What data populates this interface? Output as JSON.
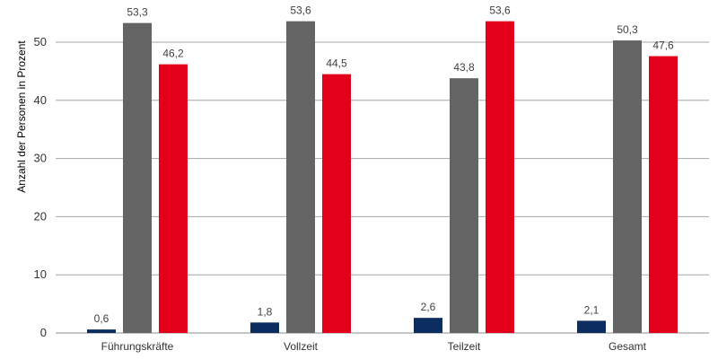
{
  "chart_data": {
    "type": "bar",
    "ylabel": "Anzahl der Personen in Prozent",
    "xlabel": "",
    "ylim": [
      0,
      55
    ],
    "yticks": [
      0,
      10,
      20,
      30,
      40,
      50
    ],
    "grid": true,
    "categories": [
      "Führungskräfte",
      "Vollzeit",
      "Teilzeit",
      "Gesamt"
    ],
    "series": [
      {
        "color": "#0b2d60",
        "values": [
          0.6,
          1.8,
          2.6,
          2.1
        ],
        "labels": [
          "0,6",
          "1,8",
          "2,6",
          "2,1"
        ]
      },
      {
        "color": "#646464",
        "values": [
          53.3,
          53.6,
          43.8,
          50.3
        ],
        "labels": [
          "53,3",
          "53,6",
          "43,8",
          "50,3"
        ]
      },
      {
        "color": "#e2001a",
        "values": [
          46.2,
          44.5,
          53.6,
          47.6
        ],
        "labels": [
          "46,2",
          "44,5",
          "53,6",
          "47,6"
        ]
      }
    ]
  }
}
